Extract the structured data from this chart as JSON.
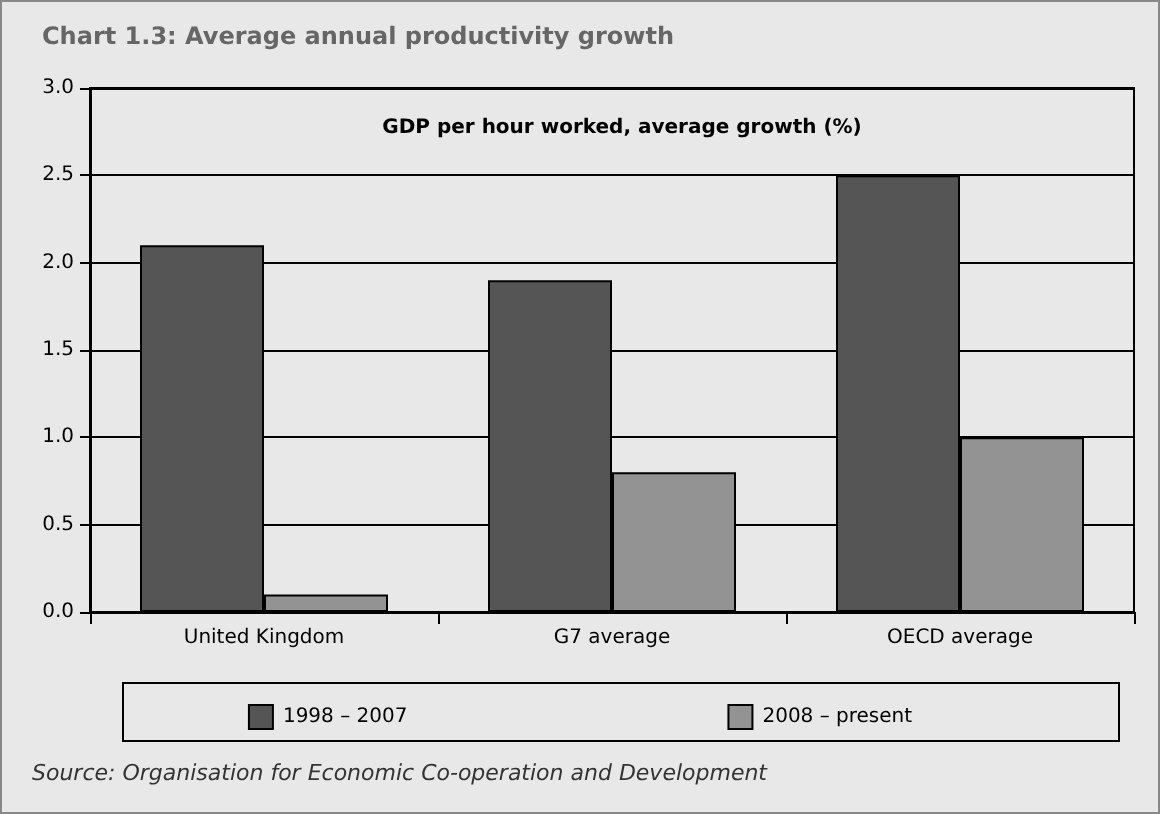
{
  "chart_data": {
    "type": "bar",
    "title": "Chart 1.3: Average annual productivity growth",
    "subtitle": "GDP per hour worked, average growth (%)",
    "categories": [
      "United Kingdom",
      "G7 average",
      "OECD average"
    ],
    "series": [
      {
        "name": "1998 – 2007",
        "color": "#555555",
        "values": [
          2.1,
          1.9,
          2.5
        ]
      },
      {
        "name": "2008 – present",
        "color": "#939393",
        "values": [
          0.1,
          0.8,
          1.0
        ]
      }
    ],
    "ylim": [
      0,
      3
    ],
    "yticks": [
      {
        "value": 0,
        "label": "0.0"
      },
      {
        "value": 0.5,
        "label": "0.5"
      },
      {
        "value": 1,
        "label": "1.0"
      },
      {
        "value": 1.5,
        "label": "1.5"
      },
      {
        "value": 2,
        "label": "2.0"
      },
      {
        "value": 2.5,
        "label": "2.5"
      },
      {
        "value": 3,
        "label": "3.0"
      }
    ],
    "grid": "y",
    "legend": "bottom",
    "annotations": [
      "Source: Organisation for Economic Co-operation and Development"
    ]
  }
}
